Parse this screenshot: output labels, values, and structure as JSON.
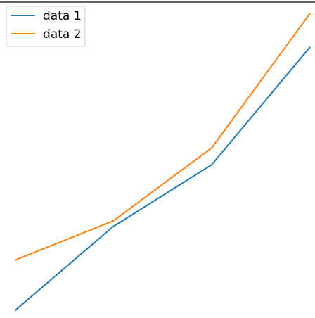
{
  "chart_data": {
    "type": "line",
    "x": [
      0,
      1,
      2,
      3
    ],
    "series": [
      {
        "name": "data 1",
        "values": [
          1.0,
          1.75,
          2.3,
          3.35
        ],
        "color": "#1f77b4"
      },
      {
        "name": "data 2",
        "values": [
          1.45,
          1.8,
          2.45,
          3.65
        ],
        "color": "#ff7f0e"
      }
    ],
    "title": "",
    "xlabel": "",
    "ylabel": "",
    "ylim": [
      0.96,
      3.75
    ],
    "grid": false,
    "legend": "top-left"
  }
}
